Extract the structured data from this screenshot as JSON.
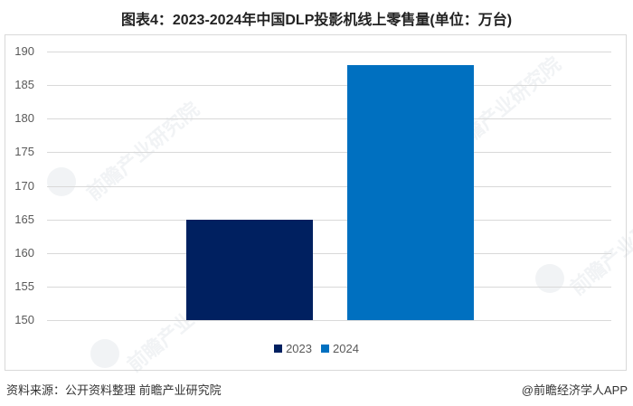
{
  "title": "图表4：2023-2024年中国DLP投影机线上零售量(单位：万台)",
  "chart_data": {
    "type": "bar",
    "title": "图表4：2023-2024年中国DLP投影机线上零售量(单位：万台)",
    "categories": [
      "2023",
      "2024"
    ],
    "series": [
      {
        "name": "2023",
        "values": [
          165
        ],
        "color": "#002060"
      },
      {
        "name": "2024",
        "values": [
          188
        ],
        "color": "#0070C0"
      }
    ],
    "values": [
      165,
      188
    ],
    "xlabel": "",
    "ylabel": "",
    "unit": "万台",
    "ylim": [
      150,
      190
    ],
    "yticks": [
      150,
      155,
      160,
      165,
      170,
      175,
      180,
      185,
      190
    ],
    "grid": true,
    "legend_position": "bottom"
  },
  "yticks": [
    "190",
    "185",
    "180",
    "175",
    "170",
    "165",
    "160",
    "155",
    "150"
  ],
  "legend": [
    {
      "label": "2023",
      "color": "#002060"
    },
    {
      "label": "2024",
      "color": "#0070C0"
    }
  ],
  "footer": {
    "source": "资料来源：公开资料整理 前瞻产业研究院",
    "credit": "@前瞻经济学人APP"
  },
  "watermark": "前瞻产业研究院"
}
